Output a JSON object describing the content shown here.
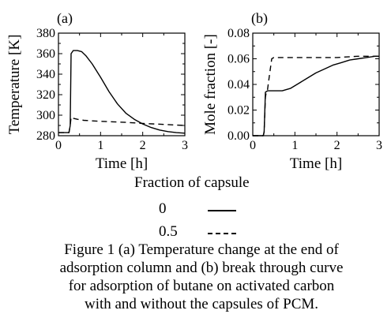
{
  "chart_data": [
    {
      "type": "line",
      "panel_label": "(a)",
      "xlabel": "Time [h]",
      "ylabel": "Temperature [K]",
      "xlim": [
        0,
        3
      ],
      "ylim": [
        280,
        380
      ],
      "xticks": [
        0,
        1,
        2,
        3
      ],
      "yticks": [
        280,
        300,
        320,
        340,
        360,
        380
      ],
      "grid": false,
      "series": [
        {
          "name": "0",
          "style": "solid",
          "x": [
            0,
            0.25,
            0.28,
            0.3,
            0.35,
            0.45,
            0.55,
            0.65,
            0.8,
            1.0,
            1.2,
            1.4,
            1.6,
            1.8,
            2.0,
            2.2,
            2.4,
            2.6,
            2.8,
            3.0
          ],
          "y": [
            283,
            283,
            290,
            360,
            363,
            363,
            362,
            358,
            350,
            337,
            323,
            311,
            302,
            296,
            291.5,
            288,
            285.5,
            284,
            283,
            282.5
          ]
        },
        {
          "name": "0.5",
          "style": "dashed",
          "x": [
            0,
            0.25,
            0.28,
            0.3,
            0.35,
            0.45,
            0.6,
            0.8,
            1.0,
            1.3,
            1.6,
            2.0,
            2.5,
            3.0
          ],
          "y": [
            283,
            283,
            290,
            298,
            297,
            296,
            295,
            294.5,
            294,
            293.5,
            293,
            292,
            291,
            290
          ]
        }
      ]
    },
    {
      "type": "line",
      "panel_label": "(b)",
      "xlabel": "Time [h]",
      "ylabel": "Mole fraction [-]",
      "xlim": [
        0,
        3
      ],
      "ylim": [
        0,
        0.08
      ],
      "xticks": [
        0,
        1,
        2,
        3
      ],
      "yticks": [
        0,
        0.02,
        0.04,
        0.06,
        0.08
      ],
      "grid": false,
      "series": [
        {
          "name": "0",
          "style": "solid",
          "x": [
            0,
            0.25,
            0.27,
            0.3,
            0.35,
            0.5,
            0.7,
            0.9,
            1.1,
            1.3,
            1.5,
            1.7,
            1.9,
            2.1,
            2.3,
            2.5,
            2.7,
            2.9,
            3.0
          ],
          "y": [
            0,
            0,
            0.003,
            0.034,
            0.035,
            0.035,
            0.035,
            0.037,
            0.041,
            0.045,
            0.049,
            0.052,
            0.055,
            0.057,
            0.059,
            0.06,
            0.061,
            0.062,
            0.062
          ]
        },
        {
          "name": "0.5",
          "style": "dashed",
          "x": [
            0,
            0.25,
            0.27,
            0.3,
            0.32,
            0.35,
            0.4,
            0.45,
            0.5,
            0.7,
            1.0,
            1.5,
            2.0,
            2.5,
            3.0
          ],
          "y": [
            0,
            0,
            0.003,
            0.03,
            0.034,
            0.036,
            0.048,
            0.06,
            0.061,
            0.061,
            0.061,
            0.061,
            0.061,
            0.062,
            0.062
          ]
        }
      ]
    }
  ],
  "legend": {
    "title": "Fraction of capsule",
    "entries": [
      {
        "label": "0",
        "style": "solid"
      },
      {
        "label": "0.5",
        "style": "dashed"
      }
    ]
  },
  "caption": {
    "lines": [
      "Figure 1 (a) Temperature change at the end of",
      "adsorption column and (b) break through curve",
      "for adsorption of butane on activated carbon",
      "with and without the capsules of PCM."
    ]
  }
}
